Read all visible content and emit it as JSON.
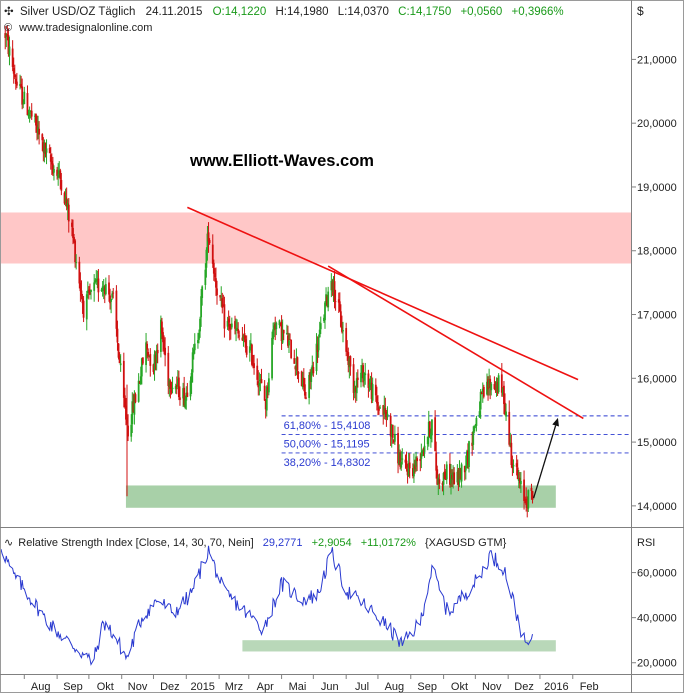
{
  "header": {
    "instrument": "Silver USD/OZ Täglich",
    "date": "24.11.2015",
    "open": "O:14,1220",
    "high": "H:14,1980",
    "low": "L:14,0370",
    "close": "C:14,1750",
    "change": "+0,0560",
    "change_pct": "+0,3966%",
    "source": "www.tradesignalonline.com",
    "currency": "$"
  },
  "watermark": "www.Elliott-Waves.com",
  "colors": {
    "up_candle": "#26a626",
    "down_candle": "#d01010",
    "header_green": "#1a9a1a",
    "trendline": "#ee1111",
    "resistance_zone": "#ffc7c7",
    "support_zone": "#a8d0a8",
    "fib_line": "#2a3ad0",
    "rsi_line": "#2a3ad0"
  },
  "chart_data": [
    {
      "type": "line",
      "subtype": "candlestick",
      "series_name": "Silver USD/OZ",
      "y_ticks": [
        "21,0000",
        "20,0000",
        "19,0000",
        "18,0000",
        "17,0000",
        "16,0000",
        "15,0000",
        "14,0000"
      ],
      "x_ticks": [
        "Aug",
        "Sep",
        "Okt",
        "Nov",
        "Dez",
        "2015",
        "Mrz",
        "Apr",
        "Mai",
        "Jun",
        "Jul",
        "Aug",
        "Sep",
        "Okt",
        "Nov",
        "Dez",
        "2016",
        "Feb"
      ],
      "ylim": [
        13.7,
        21.9
      ],
      "x_range": [
        "2014-07-10",
        "2016-02-25"
      ],
      "price_path": [
        [
          "2014-07-14",
          21.4
        ],
        [
          "2014-07-25",
          20.6
        ],
        [
          "2014-08-08",
          20.1
        ],
        [
          "2014-08-22",
          19.5
        ],
        [
          "2014-09-05",
          19.1
        ],
        [
          "2014-09-15",
          18.3
        ],
        [
          "2014-09-26",
          17.1
        ],
        [
          "2014-10-06",
          17.4
        ],
        [
          "2014-10-15",
          17.5
        ],
        [
          "2014-10-24",
          17.2
        ],
        [
          "2014-11-03",
          15.6
        ],
        [
          "2014-11-07",
          15.2
        ],
        [
          "2014-11-14",
          15.7
        ],
        [
          "2014-11-24",
          16.5
        ],
        [
          "2014-12-01",
          16.2
        ],
        [
          "2014-12-08",
          16.8
        ],
        [
          "2014-12-15",
          16.0
        ],
        [
          "2014-12-22",
          15.9
        ],
        [
          "2014-12-31",
          15.7
        ],
        [
          "2015-01-12",
          16.7
        ],
        [
          "2015-01-22",
          18.3
        ],
        [
          "2015-01-29",
          17.5
        ],
        [
          "2015-02-06",
          16.9
        ],
        [
          "2015-02-18",
          16.7
        ],
        [
          "2015-03-03",
          16.4
        ],
        [
          "2015-03-12",
          15.9
        ],
        [
          "2015-03-17",
          15.6
        ],
        [
          "2015-03-25",
          16.9
        ],
        [
          "2015-04-06",
          16.6
        ],
        [
          "2015-04-16",
          16.2
        ],
        [
          "2015-04-24",
          15.7
        ],
        [
          "2015-05-06",
          16.6
        ],
        [
          "2015-05-18",
          17.6
        ],
        [
          "2015-05-28",
          16.8
        ],
        [
          "2015-06-08",
          15.9
        ],
        [
          "2015-06-18",
          16.1
        ],
        [
          "2015-06-30",
          15.6
        ],
        [
          "2015-07-10",
          15.4
        ],
        [
          "2015-07-20",
          14.8
        ],
        [
          "2015-07-24",
          14.6
        ],
        [
          "2015-08-04",
          14.6
        ],
        [
          "2015-08-14",
          15.0
        ],
        [
          "2015-08-21",
          15.3
        ],
        [
          "2015-08-26",
          14.4
        ],
        [
          "2015-09-04",
          14.5
        ],
        [
          "2015-09-14",
          14.4
        ],
        [
          "2015-09-24",
          14.8
        ],
        [
          "2015-10-05",
          15.6
        ],
        [
          "2015-10-14",
          15.9
        ],
        [
          "2015-10-23",
          15.9
        ],
        [
          "2015-10-28",
          15.7
        ],
        [
          "2015-11-04",
          14.8
        ],
        [
          "2015-11-12",
          14.3
        ],
        [
          "2015-11-17",
          14.1
        ],
        [
          "2015-11-24",
          14.17
        ]
      ],
      "resistance_zone": [
        17.8,
        18.6
      ],
      "support_zone": {
        "range": [
          13.97,
          14.32
        ],
        "x_start": "2014-11-05",
        "x_end": "2015-12-16"
      },
      "spike_low": {
        "date": "2014-11-06",
        "value": 14.15
      },
      "trendlines": [
        {
          "from": [
            "2015-01-02",
            18.68
          ],
          "to": [
            "2016-01-06",
            15.98
          ]
        },
        {
          "from": [
            "2015-05-15",
            17.76
          ],
          "to": [
            "2016-01-11",
            15.37
          ]
        }
      ],
      "projection_arrow": {
        "from": [
          "2015-11-25",
          14.12
        ],
        "to": [
          "2015-12-18",
          15.38
        ]
      },
      "fibonacci": [
        {
          "label": "61,80% - 15,4108",
          "value": 15.4108
        },
        {
          "label": "50,00% - 15,1195",
          "value": 15.1195
        },
        {
          "label": "38,20% - 14,8302",
          "value": 14.8302
        }
      ],
      "fib_x_start": "2015-04-01",
      "fib_x_end": "2016-02-25"
    },
    {
      "type": "line",
      "series_name": "Relative Strength Index",
      "title": "Relative Strength Index [Close, 14, 30, 70, Nein]",
      "value": "29,2771",
      "change": "+2,9054",
      "change_pct": "+11,0172%",
      "symbol": "{XAGUSD GTM}",
      "axis_label": "RSI",
      "y_ticks": [
        "60,0000",
        "40,0000",
        "20,0000"
      ],
      "ylim": [
        15,
        78
      ],
      "support_band": {
        "range": [
          25,
          30
        ],
        "x_start": "2015-02-23",
        "x_end": "2015-12-16"
      },
      "rsi_path": [
        [
          "2014-07-10",
          72
        ],
        [
          "2014-07-20",
          60
        ],
        [
          "2014-08-05",
          50
        ],
        [
          "2014-08-20",
          40
        ],
        [
          "2014-09-05",
          32
        ],
        [
          "2014-09-20",
          26
        ],
        [
          "2014-10-05",
          20
        ],
        [
          "2014-10-15",
          38
        ],
        [
          "2014-10-25",
          32
        ],
        [
          "2014-11-06",
          22
        ],
        [
          "2014-11-20",
          40
        ],
        [
          "2014-12-05",
          48
        ],
        [
          "2014-12-20",
          42
        ],
        [
          "2015-01-05",
          50
        ],
        [
          "2015-01-22",
          70
        ],
        [
          "2015-02-05",
          52
        ],
        [
          "2015-02-20",
          45
        ],
        [
          "2015-03-15",
          35
        ],
        [
          "2015-04-01",
          55
        ],
        [
          "2015-04-20",
          48
        ],
        [
          "2015-05-05",
          50
        ],
        [
          "2015-05-18",
          69
        ],
        [
          "2015-06-01",
          52
        ],
        [
          "2015-06-20",
          45
        ],
        [
          "2015-07-10",
          36
        ],
        [
          "2015-07-24",
          28
        ],
        [
          "2015-08-10",
          38
        ],
        [
          "2015-08-21",
          62
        ],
        [
          "2015-09-05",
          42
        ],
        [
          "2015-09-20",
          50
        ],
        [
          "2015-10-05",
          58
        ],
        [
          "2015-10-15",
          68
        ],
        [
          "2015-10-28",
          62
        ],
        [
          "2015-11-10",
          40
        ],
        [
          "2015-11-17",
          28
        ],
        [
          "2015-11-24",
          29.3
        ]
      ]
    }
  ]
}
